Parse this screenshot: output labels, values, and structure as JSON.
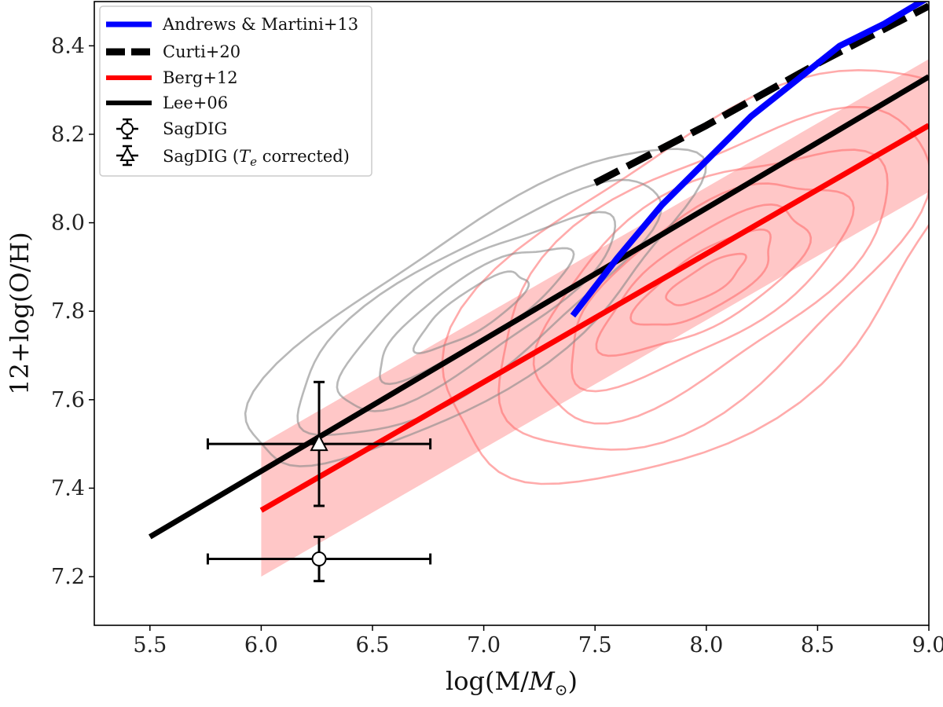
{
  "chart_data": {
    "type": "line",
    "title": "",
    "xlabel_main": "log(M/",
    "xlabel_sym": "M",
    "xlabel_sub": "⊙",
    "xlabel_close": ")",
    "ylabel": "12+log(O/H)",
    "xlim": [
      5.25,
      9.0
    ],
    "ylim": [
      7.09,
      8.5
    ],
    "xticks": [
      5.5,
      6.0,
      6.5,
      7.0,
      7.5,
      8.0,
      8.5,
      9.0
    ],
    "xtick_labels": [
      "5.5",
      "6.0",
      "6.5",
      "7.0",
      "7.5",
      "8.0",
      "8.5",
      "9.0"
    ],
    "yticks": [
      7.2,
      7.4,
      7.6,
      7.8,
      8.0,
      8.2,
      8.4
    ],
    "ytick_labels": [
      "7.2",
      "7.4",
      "7.6",
      "7.8",
      "8.0",
      "8.2",
      "8.4"
    ],
    "legend_position": "top-left",
    "series": [
      {
        "name": "Andrews & Martini+13",
        "color": "#0000ff",
        "style": "solid",
        "x": [
          7.4,
          7.6,
          7.8,
          8.0,
          8.2,
          8.4,
          8.6,
          8.8,
          9.0
        ],
        "y": [
          7.79,
          7.92,
          8.04,
          8.14,
          8.24,
          8.32,
          8.4,
          8.45,
          8.51
        ]
      },
      {
        "name": "Curti+20",
        "color": "#000000",
        "style": "dashed",
        "x": [
          7.5,
          8.0,
          8.5,
          9.0
        ],
        "y": [
          8.09,
          8.22,
          8.36,
          8.49
        ]
      },
      {
        "name": "Berg+12",
        "color": "#ff0000",
        "style": "solid",
        "x": [
          6.0,
          9.0
        ],
        "y": [
          7.35,
          8.22
        ]
      },
      {
        "name": "Lee+06",
        "color": "#000000",
        "style": "solid",
        "x": [
          5.5,
          9.0
        ],
        "y": [
          7.29,
          8.33
        ]
      }
    ],
    "band": {
      "name": "Berg+12 scatter",
      "color": "#ff9999",
      "x": [
        6.0,
        9.0
      ],
      "y_low": [
        7.2,
        8.07
      ],
      "y_high": [
        7.5,
        8.37
      ]
    },
    "points": [
      {
        "name": "SagDIG",
        "marker": "circle",
        "x": 6.26,
        "y": 7.24,
        "xerr": 0.5,
        "yerr_low": 0.05,
        "yerr_high": 0.05
      },
      {
        "name": "SagDIG (Te corrected)",
        "marker": "triangle",
        "x": 6.26,
        "y": 7.5,
        "xerr": 0.5,
        "yerr_low": 0.14,
        "yerr_high": 0.14
      }
    ],
    "contours": {
      "grey": {
        "color": "#888888",
        "cx": 6.95,
        "cy": 7.8,
        "slope": 0.3,
        "semi_major": [
          1.05,
          0.85,
          0.65,
          0.45,
          0.26
        ],
        "semi_minor": [
          0.2,
          0.16,
          0.12,
          0.08,
          0.05
        ]
      },
      "red": {
        "color": "#ff6666",
        "cx": 8.0,
        "cy": 7.87,
        "slope": 0.27,
        "semi_major": [
          1.2,
          1.0,
          0.82,
          0.65,
          0.48,
          0.32,
          0.18
        ],
        "semi_minor": [
          0.36,
          0.29,
          0.22,
          0.16,
          0.11,
          0.07,
          0.035
        ]
      }
    },
    "legend_labels": {
      "andrews": "Andrews & Martini+13",
      "curti": "Curti+20",
      "berg": "Berg+12",
      "lee": "Lee+06",
      "sag": "SagDIG",
      "sag_te_pre": "SagDIG (",
      "sag_te_T": "T",
      "sag_te_e": "e",
      "sag_te_post": " corrected)"
    }
  }
}
